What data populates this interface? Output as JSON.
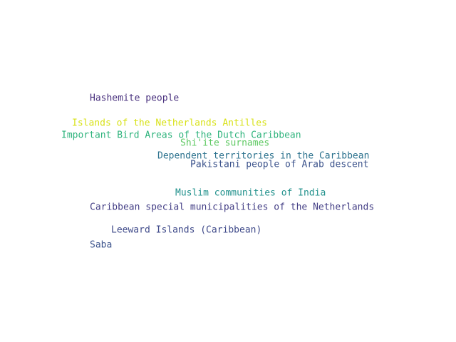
{
  "words": [
    {
      "text": "Hashemite people",
      "color": "#472f7d"
    },
    {
      "text": "Islands of the Netherlands Antilles",
      "color": "#d8e219"
    },
    {
      "text": "Important Bird Areas of the Dutch Caribbean",
      "color": "#2eb37c"
    },
    {
      "text": "Shi'ite surnames",
      "color": "#5ec962"
    },
    {
      "text": "Dependent territories in the Caribbean",
      "color": "#2c728e"
    },
    {
      "text": "Pakistani people of Arab descent",
      "color": "#3b528b"
    },
    {
      "text": "Muslim communities of India",
      "color": "#21918c"
    },
    {
      "text": "Caribbean special municipalities of the Netherlands",
      "color": "#433e85"
    },
    {
      "text": "Leeward Islands (Caribbean)",
      "color": "#3e4989"
    },
    {
      "text": "Saba",
      "color": "#3b528b"
    }
  ]
}
